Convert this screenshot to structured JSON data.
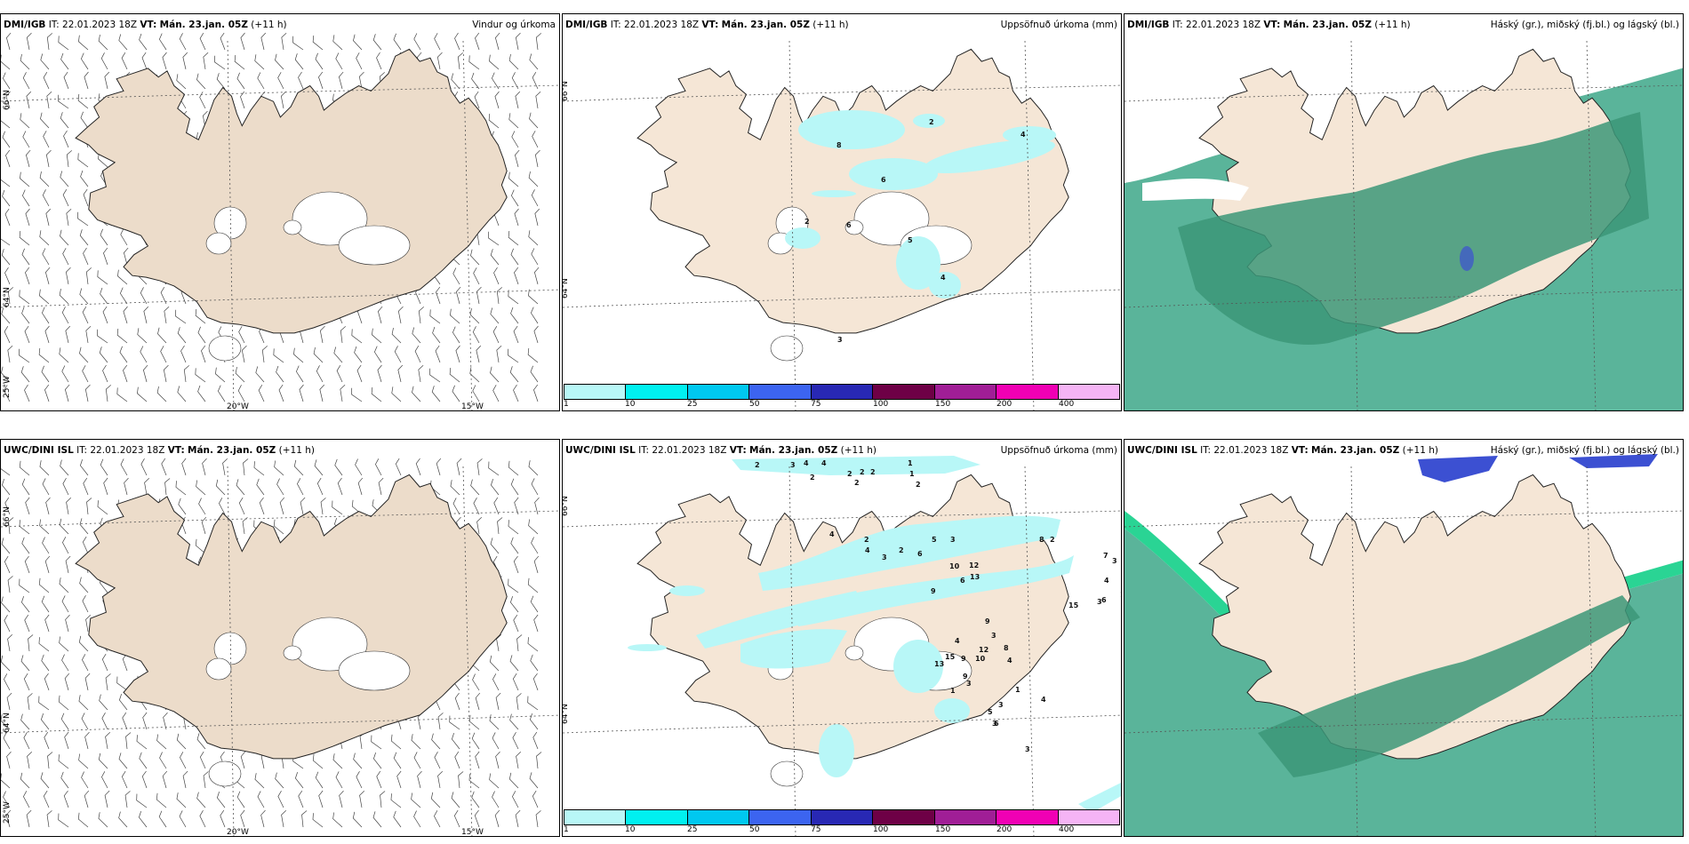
{
  "panels": [
    {
      "id": "p1",
      "model": "DMI/IGB",
      "it_label": "IT:",
      "it_value": "22.01.2023 18Z",
      "vt_label": "VT:",
      "vt_value": "Mán. 23.jan. 05Z",
      "lead": "(+11 h)",
      "title": "Vindur og úrkoma"
    },
    {
      "id": "p2",
      "model": "DMI/IGB",
      "it_label": "IT:",
      "it_value": "22.01.2023 18Z",
      "vt_label": "VT:",
      "vt_value": "Mán. 23.jan. 05Z",
      "lead": "(+11 h)",
      "title": "Uppsöfnuð úrkoma (mm)"
    },
    {
      "id": "p3",
      "model": "DMI/IGB",
      "it_label": "IT:",
      "it_value": "22.01.2023 18Z",
      "vt_label": "VT:",
      "vt_value": "Mán. 23.jan. 05Z",
      "lead": "(+11 h)",
      "title": "Háský (gr.), miðský (fj.bl.) og lágský (bl.)"
    },
    {
      "id": "p4",
      "model": "UWC/DINI ISL",
      "it_label": "IT:",
      "it_value": "22.01.2023 18Z",
      "vt_label": "VT:",
      "vt_value": "Mán. 23.jan. 05Z",
      "lead": "(+11 h)",
      "title": ""
    },
    {
      "id": "p5",
      "model": "UWC/DINI ISL",
      "it_label": "IT:",
      "it_value": "22.01.2023 18Z",
      "vt_label": "VT:",
      "vt_value": "Mán. 23.jan. 05Z",
      "lead": "(+11 h)",
      "title": "Uppsöfnuð úrkoma (mm)"
    },
    {
      "id": "p6",
      "model": "UWC/DINI ISL",
      "it_label": "IT:",
      "it_value": "22.01.2023 18Z",
      "vt_label": "VT:",
      "vt_value": "Mán. 23.jan. 05Z",
      "lead": "(+11 h)",
      "title": "Háský (gr.), miðský (fj.bl.) og lágský (bl.)"
    }
  ],
  "grid_labels": {
    "lat66": "66°N",
    "lat64": "64°N",
    "lat25w": "25°W",
    "lon20": "20°W",
    "lon15": "15°W"
  },
  "precip_legend": {
    "thresholds": [
      "1",
      "10",
      "25",
      "50",
      "75",
      "100",
      "150",
      "200",
      "400"
    ],
    "colors": [
      "#b8f7f7",
      "#00f0f0",
      "#00c8f0",
      "#3c64f0",
      "#2828b4",
      "#6e0046",
      "#a01e96",
      "#f000b4",
      "#f5b4f5"
    ]
  },
  "colors": {
    "land": "#f5e6d6",
    "land_wind": "#ecdcca",
    "low_cloud": "#5ab49a",
    "low_cloud_dark": "#3c9678",
    "mid_cloud": "#3c50d2",
    "precip_light": "#b8f7f7"
  },
  "precip_numbers_top": [
    "8",
    "2",
    "4",
    "6",
    "2",
    "6",
    "5",
    "4",
    "3"
  ],
  "precip_numbers_bottom": [
    "2",
    "3",
    "4",
    "4",
    "2",
    "2",
    "2",
    "2",
    "2",
    "1",
    "1",
    "2",
    "4",
    "2",
    "4",
    "3",
    "2",
    "6",
    "5",
    "3",
    "10",
    "12",
    "13",
    "6",
    "9",
    "8",
    "2",
    "7",
    "3",
    "4",
    "3",
    "1",
    "2",
    "1",
    "15",
    "6",
    "4",
    "3",
    "9",
    "12",
    "10",
    "4",
    "15",
    "13",
    "9",
    "3",
    "9",
    "8",
    "4",
    "3",
    "1",
    "5",
    "6",
    "3",
    "3",
    "1",
    "4",
    "3"
  ]
}
